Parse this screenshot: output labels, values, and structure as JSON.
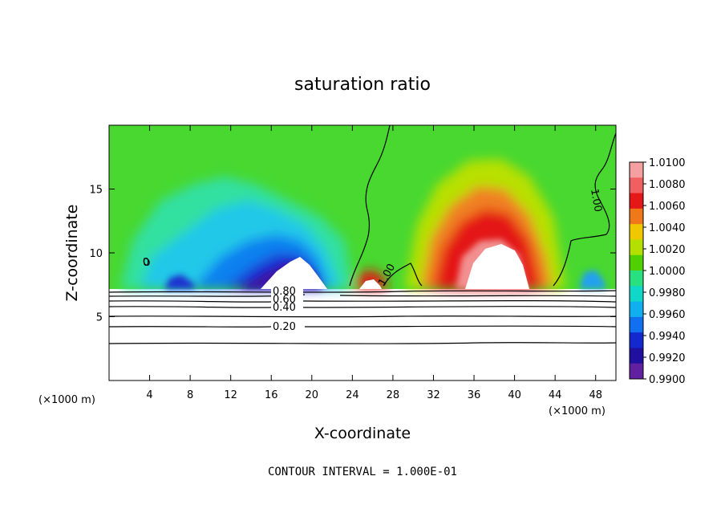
{
  "chart_data": {
    "type": "heatmap",
    "title": "saturation ratio",
    "xlabel": "X-coordinate",
    "ylabel": "Z-coordinate",
    "x_units_left": "(×1000 m)",
    "x_units_right": "(×1000 m)",
    "xlim": [
      0,
      50
    ],
    "ylim": [
      0,
      20
    ],
    "x_ticks": [
      4,
      8,
      12,
      16,
      20,
      24,
      28,
      32,
      36,
      40,
      44,
      48
    ],
    "y_ticks": [
      5,
      10,
      15
    ],
    "colorbar": {
      "levels": [
        "1.0100",
        "1.0080",
        "1.0060",
        "1.0040",
        "1.0020",
        "1.0000",
        "0.9980",
        "0.9960",
        "0.9940",
        "0.9920",
        "0.9900"
      ],
      "colors": [
        "#f5a0a0",
        "#f06060",
        "#e41818",
        "#f07818",
        "#f0c800",
        "#b4e000",
        "#50d000",
        "#28e080",
        "#10d8c8",
        "#10b0f0",
        "#1070f0",
        "#1428d0",
        "#2010a0",
        "#6020a0"
      ]
    },
    "contour_labels": [
      "1.00",
      "1.00",
      "0.80",
      "0.60",
      "0.40",
      "0.20"
    ],
    "contour_levels": [
      0.2,
      0.4,
      0.6,
      0.8,
      1.0
    ],
    "contour_interval_note": "CONTOUR INTERVAL = 1.000E-01"
  }
}
